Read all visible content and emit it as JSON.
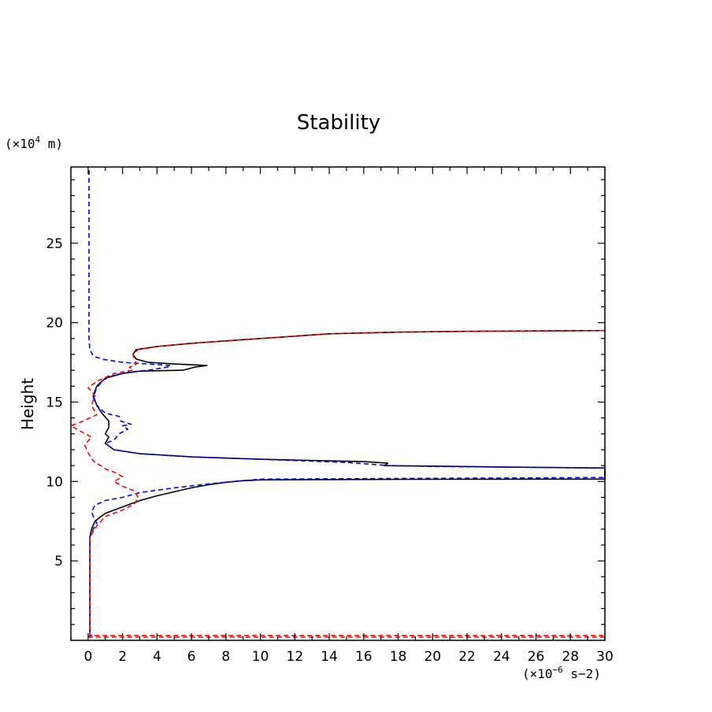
{
  "chart_data": {
    "type": "line",
    "title": "Stability",
    "xlabel": "",
    "ylabel": "Height",
    "x_unit_prefix": "(×10",
    "x_unit_exp": "−6",
    "x_unit_suffix": " s−2)",
    "y_unit_prefix": "(×10",
    "y_unit_exp": "4",
    "y_unit_suffix": " m)",
    "xlim": [
      -1,
      30
    ],
    "ylim": [
      0,
      29.8
    ],
    "xticks": [
      0,
      2,
      4,
      6,
      8,
      10,
      12,
      14,
      16,
      18,
      20,
      22,
      24,
      26,
      28,
      30
    ],
    "xtick_labels": [
      "0",
      "2",
      "4",
      "6",
      "8",
      "10",
      "12",
      "14",
      "16",
      "18",
      "20",
      "22",
      "24",
      "26",
      "28",
      "30"
    ],
    "yticks": [
      5,
      10,
      15,
      20,
      25
    ],
    "ytick_labels": [
      "5",
      "10",
      "15",
      "20",
      "25"
    ],
    "grid": false,
    "series": [
      {
        "name": "total",
        "color": "#000000",
        "dash": "solid",
        "points": [
          [
            0.0,
            0.2
          ],
          [
            0.1,
            0.3
          ],
          [
            0.1,
            6.5
          ],
          [
            0.2,
            7.0
          ],
          [
            0.4,
            7.5
          ],
          [
            1.0,
            8.0
          ],
          [
            2.0,
            8.4
          ],
          [
            3.0,
            8.8
          ],
          [
            4.0,
            9.1
          ],
          [
            5.0,
            9.35
          ],
          [
            6.0,
            9.6
          ],
          [
            7.0,
            9.8
          ],
          [
            8.0,
            9.95
          ],
          [
            9.0,
            10.05
          ],
          [
            10.0,
            10.1
          ],
          [
            14.0,
            10.12
          ],
          [
            20.0,
            10.14
          ],
          [
            30.0,
            10.15
          ],
          [
            30.0,
            10.85
          ],
          [
            25.0,
            10.9
          ],
          [
            20.0,
            10.97
          ],
          [
            17.2,
            11.0
          ],
          [
            17.4,
            11.15
          ],
          [
            16.0,
            11.25
          ],
          [
            10.0,
            11.4
          ],
          [
            6.0,
            11.55
          ],
          [
            3.0,
            11.75
          ],
          [
            1.5,
            12.0
          ],
          [
            1.0,
            12.4
          ],
          [
            1.2,
            12.8
          ],
          [
            1.0,
            13.0
          ],
          [
            1.2,
            13.4
          ],
          [
            1.2,
            13.8
          ],
          [
            0.8,
            14.3
          ],
          [
            0.5,
            14.8
          ],
          [
            0.3,
            15.4
          ],
          [
            0.5,
            16.0
          ],
          [
            1.0,
            16.5
          ],
          [
            2.0,
            16.8
          ],
          [
            3.0,
            16.95
          ],
          [
            5.5,
            17.0
          ],
          [
            6.2,
            17.2
          ],
          [
            6.9,
            17.3
          ],
          [
            5.0,
            17.4
          ],
          [
            3.5,
            17.5
          ],
          [
            2.8,
            17.7
          ],
          [
            2.6,
            18.0
          ],
          [
            2.8,
            18.3
          ],
          [
            4.0,
            18.5
          ],
          [
            6.0,
            18.7
          ],
          [
            8.0,
            18.85
          ],
          [
            10.0,
            19.0
          ],
          [
            14.0,
            19.3
          ],
          [
            18.0,
            19.4
          ],
          [
            22.0,
            19.45
          ],
          [
            30.0,
            19.5
          ]
        ]
      },
      {
        "name": "blue",
        "color": "#0000ff",
        "dash": "dashed",
        "points": [
          [
            0.0,
            0.2
          ],
          [
            0.2,
            0.3
          ],
          [
            0.1,
            0.3
          ],
          [
            0.1,
            1.0
          ],
          [
            0.1,
            6.5
          ],
          [
            0.3,
            7.0
          ],
          [
            0.5,
            7.4
          ],
          [
            0.3,
            7.8
          ],
          [
            0.2,
            8.1
          ],
          [
            0.4,
            8.5
          ],
          [
            1.0,
            8.8
          ],
          [
            2.0,
            9.0
          ],
          [
            3.0,
            9.3
          ],
          [
            5.0,
            9.6
          ],
          [
            7.0,
            9.85
          ],
          [
            9.0,
            10.05
          ],
          [
            10.0,
            10.15
          ],
          [
            20.0,
            10.2
          ],
          [
            30.0,
            10.25
          ],
          [
            30.0,
            10.85
          ],
          [
            25.0,
            10.9
          ],
          [
            20.0,
            10.95
          ],
          [
            17.5,
            11.0
          ],
          [
            15.0,
            11.2
          ],
          [
            10.0,
            11.4
          ],
          [
            6.0,
            11.55
          ],
          [
            3.0,
            11.75
          ],
          [
            1.5,
            12.0
          ],
          [
            1.0,
            12.4
          ],
          [
            1.5,
            12.6
          ],
          [
            1.8,
            13.0
          ],
          [
            2.3,
            13.3
          ],
          [
            2.0,
            13.5
          ],
          [
            2.5,
            13.6
          ],
          [
            1.9,
            13.8
          ],
          [
            1.8,
            14.1
          ],
          [
            1.0,
            14.3
          ],
          [
            0.5,
            14.8
          ],
          [
            0.3,
            15.3
          ],
          [
            0.5,
            15.9
          ],
          [
            0.9,
            16.4
          ],
          [
            1.5,
            16.7
          ],
          [
            2.5,
            16.9
          ],
          [
            3.5,
            17.0
          ],
          [
            4.6,
            17.2
          ],
          [
            4.8,
            17.3
          ],
          [
            3.5,
            17.4
          ],
          [
            2.0,
            17.5
          ],
          [
            0.8,
            17.7
          ],
          [
            0.3,
            17.9
          ],
          [
            0.1,
            18.3
          ],
          [
            0.05,
            19.0
          ],
          [
            0.05,
            29.8
          ]
        ]
      },
      {
        "name": "red",
        "color": "#ff0000",
        "dash": "dashed",
        "points": [
          [
            0.0,
            0.2
          ],
          [
            15.0,
            0.2
          ],
          [
            30.0,
            0.2
          ],
          [
            30.0,
            0.3
          ],
          [
            16.0,
            0.3
          ],
          [
            8.0,
            0.3
          ],
          [
            0.1,
            0.3
          ],
          [
            0.1,
            6.5
          ],
          [
            0.5,
            7.2
          ],
          [
            1.0,
            7.8
          ],
          [
            2.0,
            8.2
          ],
          [
            2.7,
            8.6
          ],
          [
            2.9,
            9.0
          ],
          [
            2.7,
            9.4
          ],
          [
            2.0,
            9.7
          ],
          [
            1.5,
            10.0
          ],
          [
            2.0,
            10.3
          ],
          [
            1.7,
            10.5
          ],
          [
            1.0,
            10.8
          ],
          [
            0.3,
            11.3
          ],
          [
            0.0,
            11.8
          ],
          [
            -0.2,
            12.3
          ],
          [
            0.2,
            12.8
          ],
          [
            -0.5,
            13.2
          ],
          [
            -1.0,
            13.5
          ],
          [
            -0.3,
            13.8
          ],
          [
            0.5,
            14.2
          ],
          [
            0.2,
            14.8
          ],
          [
            0.4,
            15.4
          ],
          [
            0.0,
            15.9
          ],
          [
            0.5,
            16.3
          ],
          [
            1.5,
            16.8
          ],
          [
            2.0,
            16.9
          ],
          [
            2.6,
            17.0
          ],
          [
            2.4,
            17.2
          ],
          [
            2.8,
            17.4
          ],
          [
            2.7,
            17.7
          ],
          [
            2.6,
            18.0
          ],
          [
            2.9,
            18.3
          ],
          [
            4.0,
            18.5
          ],
          [
            6.0,
            18.7
          ],
          [
            8.0,
            18.85
          ],
          [
            10.0,
            19.0
          ],
          [
            14.0,
            19.3
          ],
          [
            18.0,
            19.4
          ],
          [
            22.0,
            19.45
          ],
          [
            30.0,
            19.5
          ]
        ]
      }
    ]
  }
}
